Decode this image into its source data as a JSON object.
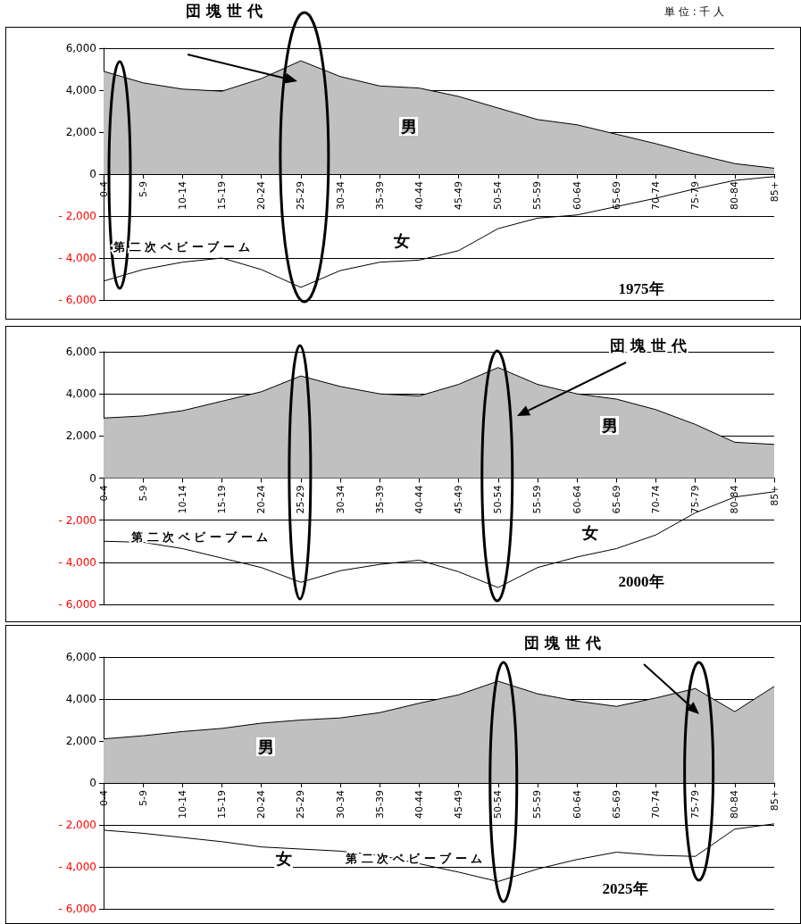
{
  "chart_data": [
    {
      "type": "area",
      "title": "1975年",
      "categories": [
        "0-4",
        "5-9",
        "10-14",
        "15-19",
        "20-24",
        "25-29",
        "30-34",
        "35-39",
        "40-44",
        "45-49",
        "50-54",
        "55-59",
        "60-64",
        "65-69",
        "70-74",
        "75-79",
        "80-84",
        "85+"
      ],
      "series": [
        {
          "name": "男",
          "type": "area",
          "color": "#c0c0c0",
          "values": [
            4900,
            4350,
            4050,
            3950,
            4550,
            5400,
            4650,
            4200,
            4100,
            3700,
            3150,
            2600,
            2350,
            1900,
            1450,
            950,
            500,
            280
          ]
        },
        {
          "name": "女",
          "type": "line",
          "color": "#000000",
          "values": [
            -5100,
            -4550,
            -4200,
            -4000,
            -4550,
            -5400,
            -4600,
            -4200,
            -4100,
            -3650,
            -2600,
            -2100,
            -1950,
            -1550,
            -1150,
            -700,
            -300,
            -120
          ]
        }
      ],
      "ylim": [
        -6000,
        6000
      ],
      "yticks": [
        {
          "value": -6000,
          "label": "- 6,000"
        },
        {
          "value": -4000,
          "label": "- 4,000"
        },
        {
          "value": -2000,
          "label": "- 2,000"
        },
        {
          "value": 0,
          "label": "0"
        },
        {
          "value": 2000,
          "label": "2,000"
        },
        {
          "value": 4000,
          "label": "4,000"
        },
        {
          "value": 6000,
          "label": "6,000"
        }
      ],
      "grid": "y",
      "legend": false,
      "marker": "none",
      "line_style": "solid",
      "annotations": [
        "単 位 : 千 人",
        "団 塊 世 代",
        "第 二 次 ベ ビ ー ブ ー ム"
      ]
    },
    {
      "type": "area",
      "title": "2000年",
      "categories": [
        "0-4",
        "5-9",
        "10-14",
        "15-19",
        "20-24",
        "25-29",
        "30-34",
        "35-39",
        "40-44",
        "45-49",
        "50-54",
        "55-59",
        "60-64",
        "65-69",
        "70-74",
        "75-79",
        "80-84",
        "85+"
      ],
      "series": [
        {
          "name": "男",
          "type": "area",
          "color": "#c0c0c0",
          "values": [
            2850,
            2950,
            3200,
            3650,
            4100,
            4850,
            4350,
            4000,
            3900,
            4450,
            5250,
            4450,
            4000,
            3750,
            3250,
            2550,
            1700,
            1600
          ]
        },
        {
          "name": "女",
          "type": "line",
          "color": "#000000",
          "values": [
            -3000,
            -3050,
            -3350,
            -3800,
            -4250,
            -4950,
            -4400,
            -4100,
            -3900,
            -4450,
            -5200,
            -4250,
            -3750,
            -3350,
            -2700,
            -1650,
            -900,
            -650
          ]
        }
      ],
      "ylim": [
        -6000,
        6000
      ],
      "yticks": [
        {
          "value": -6000,
          "label": "- 6,000"
        },
        {
          "value": -4000,
          "label": "- 4,000"
        },
        {
          "value": -2000,
          "label": "- 2,000"
        },
        {
          "value": 0,
          "label": "0"
        },
        {
          "value": 2000,
          "label": "2,000"
        },
        {
          "value": 4000,
          "label": "4,000"
        },
        {
          "value": 6000,
          "label": "6,000"
        }
      ],
      "grid": "y",
      "legend": false,
      "marker": "none",
      "line_style": "solid",
      "annotations": [
        "団 塊 世 代",
        "第 二 次 ベ ビ ー ブ ー ム"
      ]
    },
    {
      "type": "area",
      "title": "2025年",
      "categories": [
        "0-4",
        "5-9",
        "10-14",
        "15-19",
        "20-24",
        "25-29",
        "30-34",
        "35-39",
        "40-44",
        "45-49",
        "50-54",
        "55-59",
        "60-64",
        "65-69",
        "70-74",
        "75-79",
        "80-84",
        "85+"
      ],
      "series": [
        {
          "name": "男",
          "type": "area",
          "color": "#c0c0c0",
          "values": [
            2100,
            2250,
            2450,
            2600,
            2850,
            3000,
            3100,
            3350,
            3800,
            4200,
            4850,
            4250,
            3900,
            3650,
            4050,
            4500,
            3400,
            4600
          ]
        },
        {
          "name": "女",
          "type": "line",
          "color": "#000000",
          "values": [
            -2250,
            -2400,
            -2600,
            -2800,
            -3050,
            -3150,
            -3250,
            -3450,
            -3850,
            -4250,
            -4700,
            -4100,
            -3650,
            -3300,
            -3450,
            -3500,
            -2200,
            -1950
          ]
        }
      ],
      "ylim": [
        -6000,
        6000
      ],
      "yticks": [
        {
          "value": -6000,
          "label": "- 6,000"
        },
        {
          "value": -4000,
          "label": "- 4,000"
        },
        {
          "value": -2000,
          "label": "- 2,000"
        },
        {
          "value": 0,
          "label": "0"
        },
        {
          "value": 2000,
          "label": "2,000"
        },
        {
          "value": 4000,
          "label": "4,000"
        },
        {
          "value": 6000,
          "label": "6,000"
        }
      ],
      "grid": "y",
      "legend": false,
      "marker": "none",
      "line_style": "solid",
      "annotations": [
        "団 塊 世 代",
        "第 二 次 ベ ビ ー ブ ー ム"
      ]
    }
  ]
}
